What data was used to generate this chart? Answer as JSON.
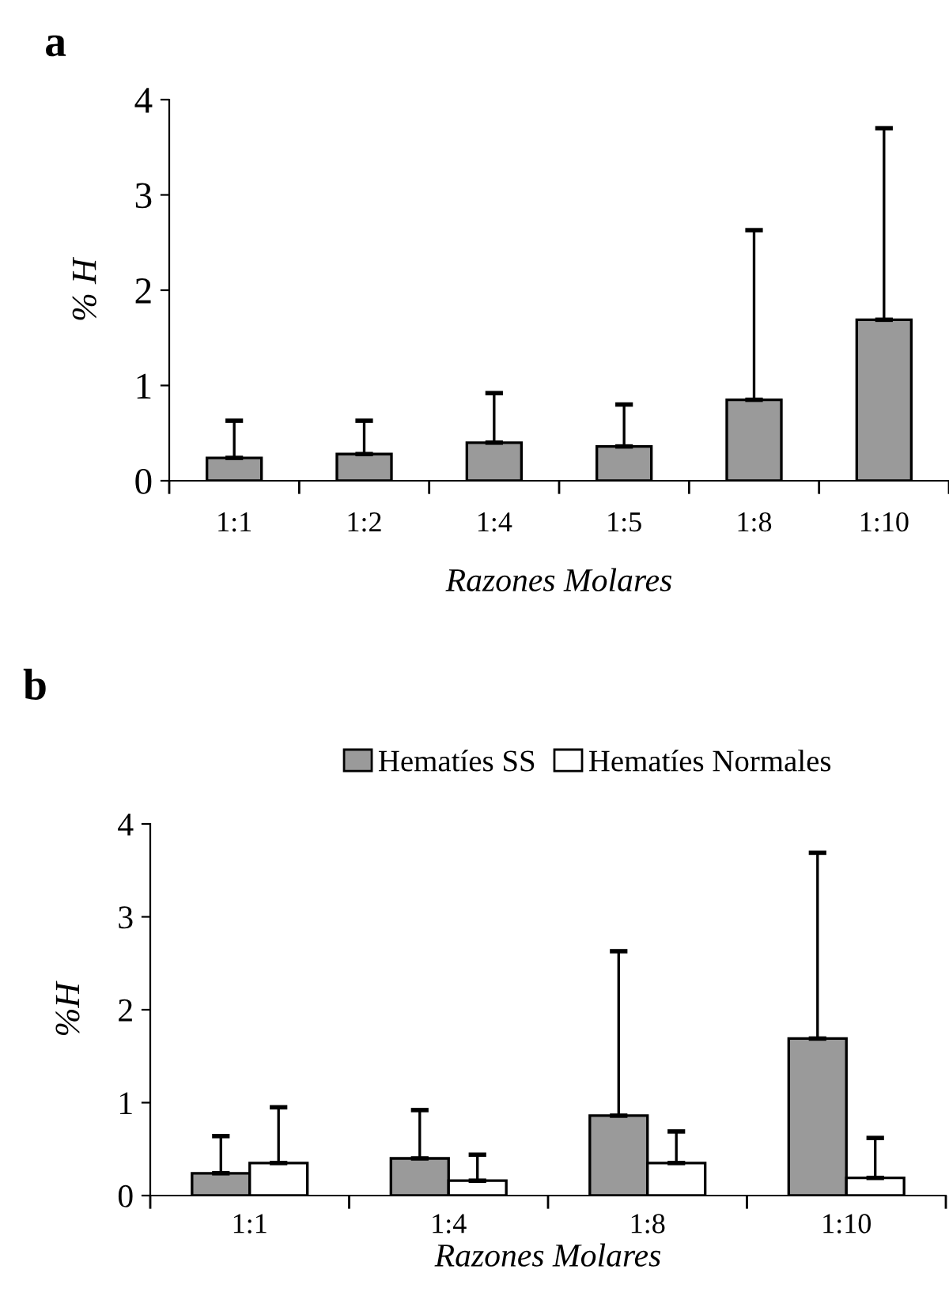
{
  "chart_data": [
    {
      "type": "bar",
      "title": "a",
      "xlabel": "Razones Molares",
      "ylabel": "% H",
      "categories": [
        "1:1",
        "1:2",
        "1:4",
        "1:5",
        "1:8",
        "1:10"
      ],
      "series": [
        {
          "color": "#9a9a9a",
          "values": [
            0.24,
            0.28,
            0.4,
            0.36,
            0.85,
            1.69
          ],
          "errors": [
            [
              0.24,
              0.63
            ],
            [
              0.28,
              0.63
            ],
            [
              0.4,
              0.92
            ],
            [
              0.36,
              0.8
            ],
            [
              0.85,
              2.63
            ],
            [
              1.69,
              3.7
            ]
          ]
        }
      ],
      "ylim": [
        0,
        4
      ],
      "yticks": [
        0,
        1,
        2,
        3,
        4
      ],
      "grid": false,
      "legend": false
    },
    {
      "type": "bar",
      "title": "b",
      "xlabel": "Razones Molares",
      "ylabel": "%H",
      "categories": [
        "1:1",
        "1:4",
        "1:8",
        "1:10"
      ],
      "series": [
        {
          "name": "Hematíes SS",
          "color": "#9a9a9a",
          "values": [
            0.24,
            0.4,
            0.86,
            1.69
          ],
          "errors": [
            [
              0.24,
              0.64
            ],
            [
              0.4,
              0.92
            ],
            [
              0.86,
              2.63
            ],
            [
              1.69,
              3.69
            ]
          ]
        },
        {
          "name": "Hematíes Normales",
          "color": "#ffffff",
          "values": [
            0.35,
            0.16,
            0.35,
            0.19
          ],
          "errors": [
            [
              0.35,
              0.95
            ],
            [
              0.16,
              0.44
            ],
            [
              0.35,
              0.69
            ],
            [
              0.19,
              0.62
            ]
          ]
        }
      ],
      "ylim": [
        0,
        4
      ],
      "yticks": [
        0,
        1,
        2,
        3,
        4
      ],
      "grid": false,
      "legend": "top"
    }
  ]
}
